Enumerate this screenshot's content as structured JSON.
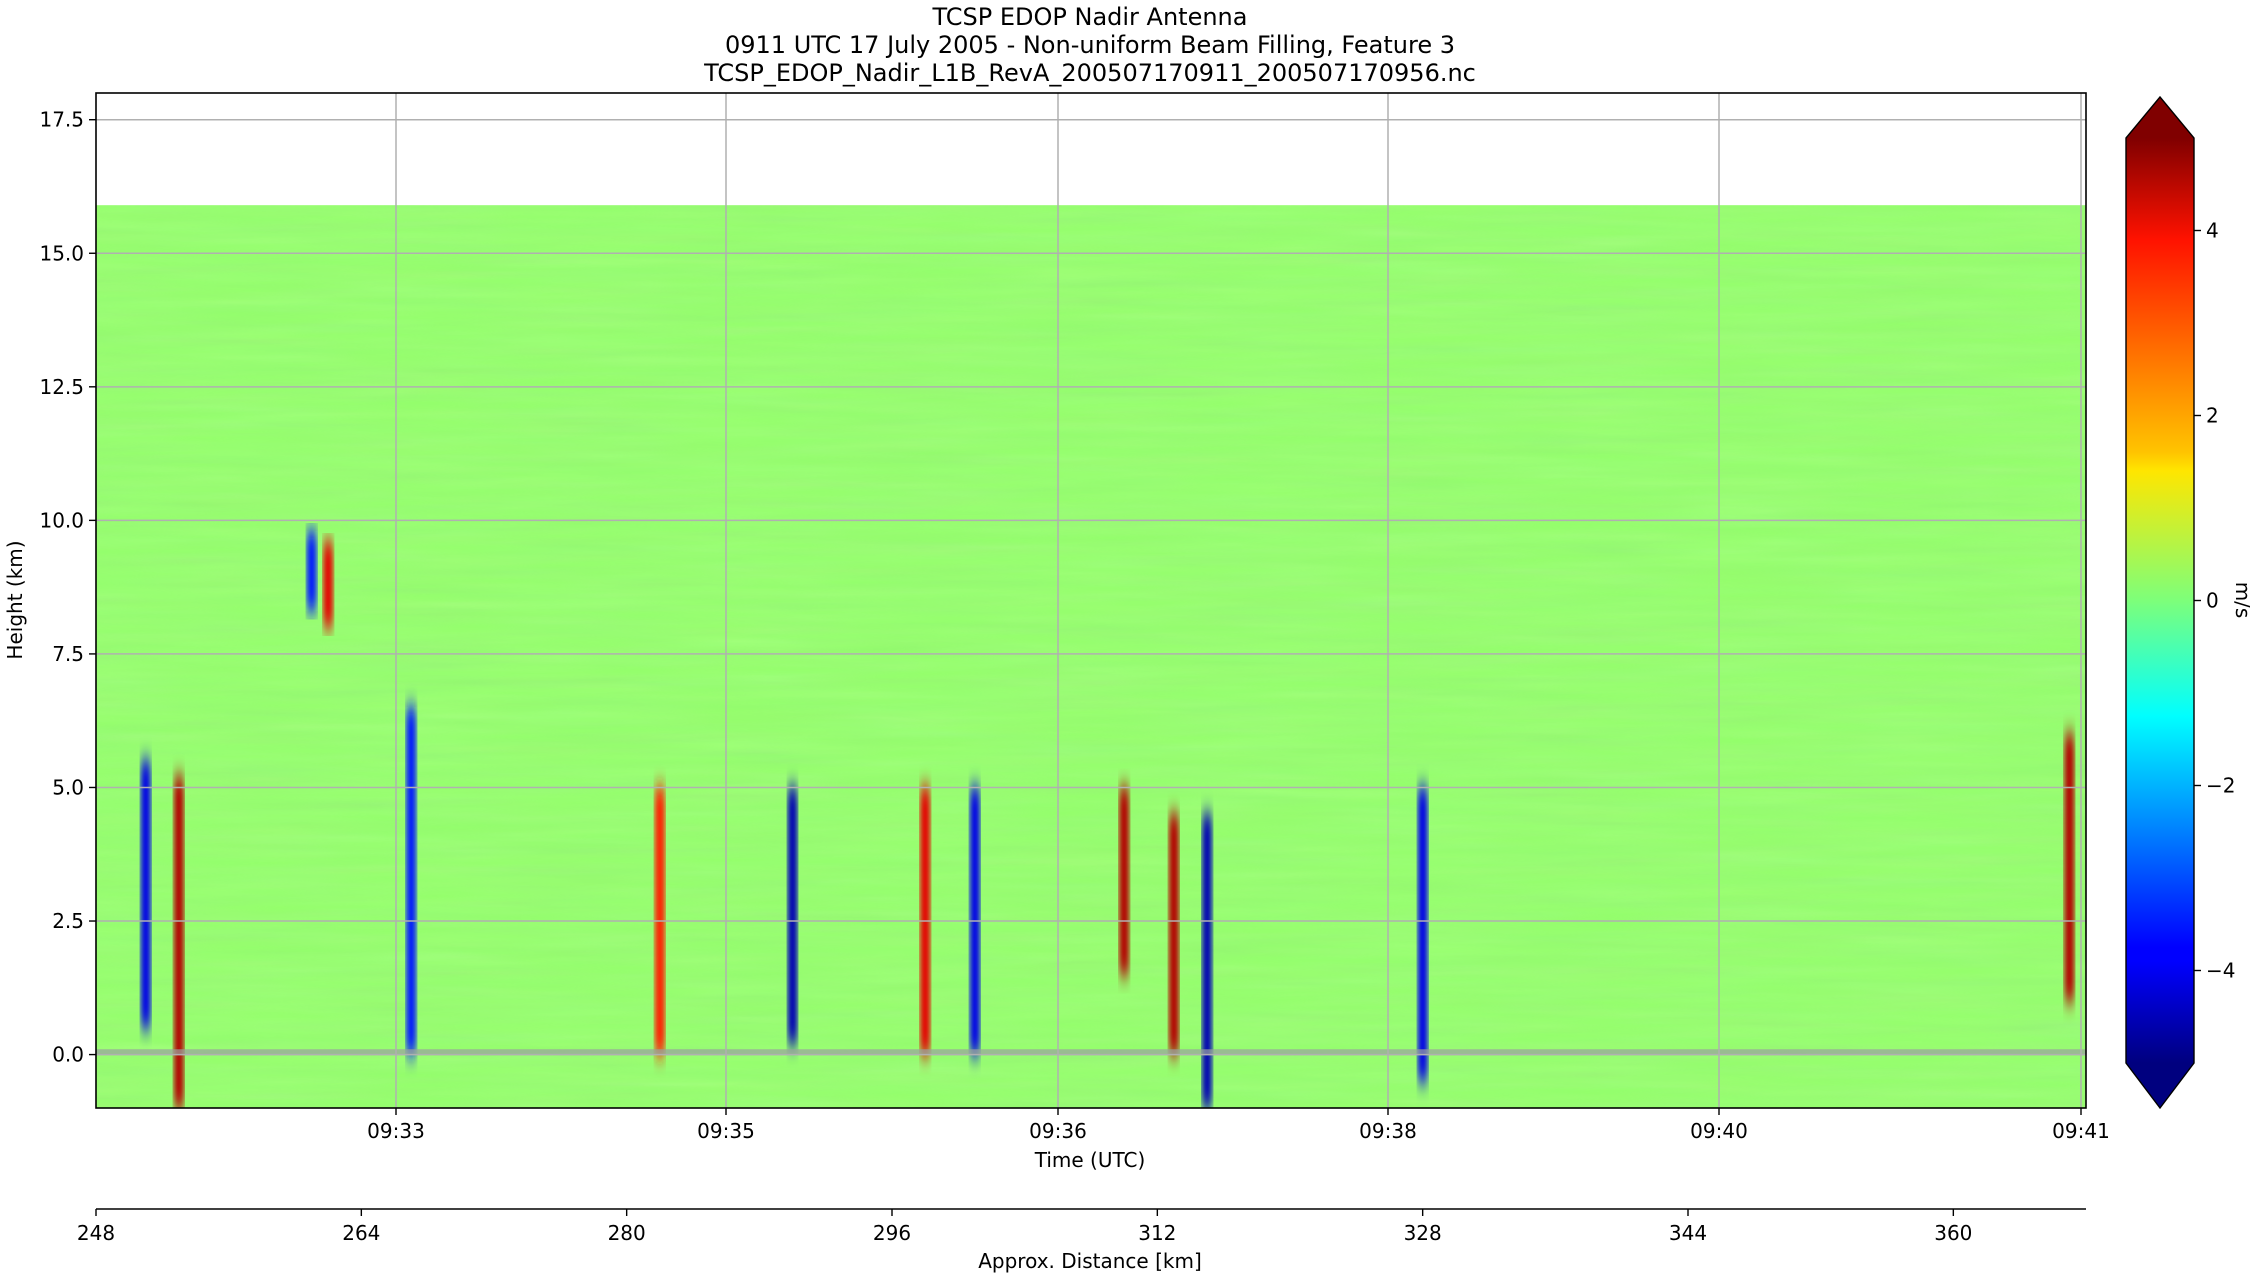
{
  "chart_data": {
    "type": "heatmap",
    "title_lines": [
      "TCSP EDOP Nadir Antenna",
      "0911 UTC 17 July 2005 - Non-uniform Beam Filling, Feature 3",
      "TCSP_EDOP_Nadir_L1B_RevA_200507170911_200507170956.nc"
    ],
    "xlabel": "Time (UTC)",
    "ylabel": "Height (km)",
    "secondary_xlabel": "Approx. Distance [km]",
    "colorbar_label": "m/s",
    "colormap": "jet",
    "extend": "both",
    "vlim": [
      -5,
      5
    ],
    "ylim": [
      -1.0,
      18.0
    ],
    "grid": true,
    "x_ticks": [
      "09:33",
      "09:35",
      "09:36",
      "09:38",
      "09:40",
      "09:41"
    ],
    "y_ticks": [
      0.0,
      2.5,
      5.0,
      7.5,
      10.0,
      12.5,
      15.0,
      17.5
    ],
    "y_tick_labels": [
      "0.0",
      "2.5",
      "5.0",
      "7.5",
      "10.0",
      "12.5",
      "15.0",
      "17.5"
    ],
    "distance_ticks": [
      "248",
      "264",
      "280",
      "296",
      "312",
      "328",
      "344",
      "360"
    ],
    "distance_range_km": [
      248,
      368
    ],
    "colorbar_ticks": [
      -4,
      -2,
      0,
      2,
      4
    ],
    "colorbar_tick_labels": [
      "−4",
      "−2",
      "0",
      "2",
      "4"
    ],
    "echo_top_km": 15.9,
    "background_velocity": 0.2,
    "features": [
      {
        "x_km": 253,
        "bottom": -1.0,
        "top": 5.2,
        "value": 4.5
      },
      {
        "x_km": 251,
        "bottom": 0.5,
        "top": 5.5,
        "value": -4.0
      },
      {
        "x_km": 262,
        "bottom": 8.0,
        "top": 9.6,
        "value": 4.0
      },
      {
        "x_km": 261,
        "bottom": 8.3,
        "top": 9.8,
        "value": -3.5
      },
      {
        "x_km": 267,
        "bottom": 0.0,
        "top": 6.5,
        "value": -3.5
      },
      {
        "x_km": 282,
        "bottom": 0.0,
        "top": 5.0,
        "value": 3.5
      },
      {
        "x_km": 290,
        "bottom": 0.2,
        "top": 5.0,
        "value": -4.5
      },
      {
        "x_km": 298,
        "bottom": 0.0,
        "top": 5.0,
        "value": 4.0
      },
      {
        "x_km": 301,
        "bottom": 0.0,
        "top": 5.0,
        "value": -4.0
      },
      {
        "x_km": 310,
        "bottom": 1.5,
        "top": 5.0,
        "value": 4.5
      },
      {
        "x_km": 313,
        "bottom": 0.0,
        "top": 4.5,
        "value": 4.5
      },
      {
        "x_km": 315,
        "bottom": -1.0,
        "top": 4.5,
        "value": -4.5
      },
      {
        "x_km": 328,
        "bottom": -0.5,
        "top": 5.0,
        "value": -4.0
      },
      {
        "x_km": 367,
        "bottom": 1.0,
        "top": 6.0,
        "value": 4.5
      }
    ]
  }
}
